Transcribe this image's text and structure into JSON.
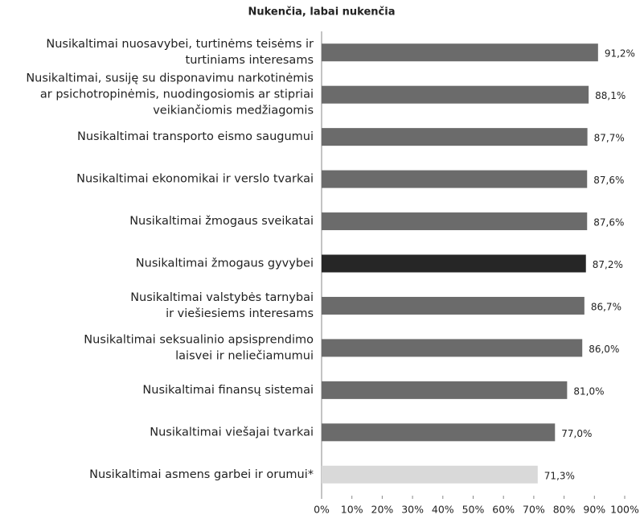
{
  "chart_data": {
    "type": "bar",
    "orientation": "horizontal",
    "title": "Nukenčia, labai nukenčia",
    "categories": [
      [
        "Nusikaltimai nuosavybei, turtinėms teisėms ir",
        "turtiniams interesams"
      ],
      [
        "Nusikaltimai, susiję su disponavimu narkotinėmis",
        "ar psichotropinėmis, nuodingosiomis ar stipriai",
        "veikiančiomis medžiagomis"
      ],
      [
        "Nusikaltimai transporto eismo saugumui"
      ],
      [
        "Nusikaltimai ekonomikai ir verslo tvarkai"
      ],
      [
        "Nusikaltimai žmogaus sveikatai"
      ],
      [
        "Nusikaltimai žmogaus gyvybei"
      ],
      [
        "Nusikaltimai valstybės tarnybai",
        "ir viešiesiems interesams"
      ],
      [
        "Nusikaltimai seksualinio apsisprendimo",
        "laisvei ir neliečiamumui"
      ],
      [
        "Nusikaltimai finansų sistemai"
      ],
      [
        "Nusikaltimai viešajai tvarkai"
      ],
      [
        "Nusikaltimai asmens garbei ir orumui*"
      ]
    ],
    "values": [
      91.2,
      88.1,
      87.7,
      87.6,
      87.6,
      87.2,
      86.7,
      86.0,
      81.0,
      77.0,
      71.3
    ],
    "value_labels": [
      "91,2%",
      "88,1%",
      "87,7%",
      "87,6%",
      "87,6%",
      "87,2%",
      "86,7%",
      "86,0%",
      "81,0%",
      "77,0%",
      "71,3%"
    ],
    "colors": [
      "#6b6b6b",
      "#6b6b6b",
      "#6b6b6b",
      "#6b6b6b",
      "#6b6b6b",
      "#262626",
      "#6b6b6b",
      "#6b6b6b",
      "#6b6b6b",
      "#6b6b6b",
      "#d9d9d9"
    ],
    "xlim": [
      0,
      100
    ],
    "xticks": [
      {
        "value": 0,
        "label": "0%"
      },
      {
        "value": 10,
        "label": "10%"
      },
      {
        "value": 20,
        "label": "20%"
      },
      {
        "value": 30,
        "label": "30%"
      },
      {
        "value": 40,
        "label": "40%"
      },
      {
        "value": 50,
        "label": "50%"
      },
      {
        "value": 60,
        "label": "60%"
      },
      {
        "value": 70,
        "label": "70%"
      },
      {
        "value": 80,
        "label": "80%"
      },
      {
        "value": 90,
        "label": "90%"
      },
      {
        "value": 100,
        "label": "100%"
      }
    ],
    "grid": false
  }
}
